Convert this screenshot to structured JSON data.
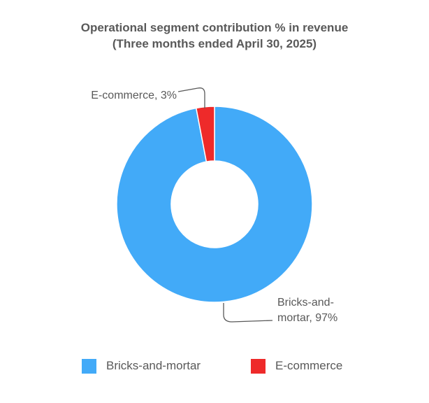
{
  "chart_data": {
    "type": "pie",
    "donut": true,
    "title": "Operational segment contribution % in revenue",
    "subtitle": "(Three months ended April 30, 2025)",
    "categories": [
      "Bricks-and-mortar",
      "E-commerce"
    ],
    "values": [
      97,
      3
    ],
    "unit": "%",
    "colors": [
      "#42AAF8",
      "#EE2A2A"
    ],
    "data_labels": [
      "Bricks-and-mortar, 97%",
      "E-commerce, 3%"
    ],
    "data_label_lines": [
      [
        "Bricks-and-",
        "mortar, 97%"
      ],
      [
        "E-commerce, 3%"
      ]
    ],
    "legend": {
      "position": "bottom",
      "entries": [
        "Bricks-and-mortar",
        "E-commerce"
      ]
    }
  }
}
